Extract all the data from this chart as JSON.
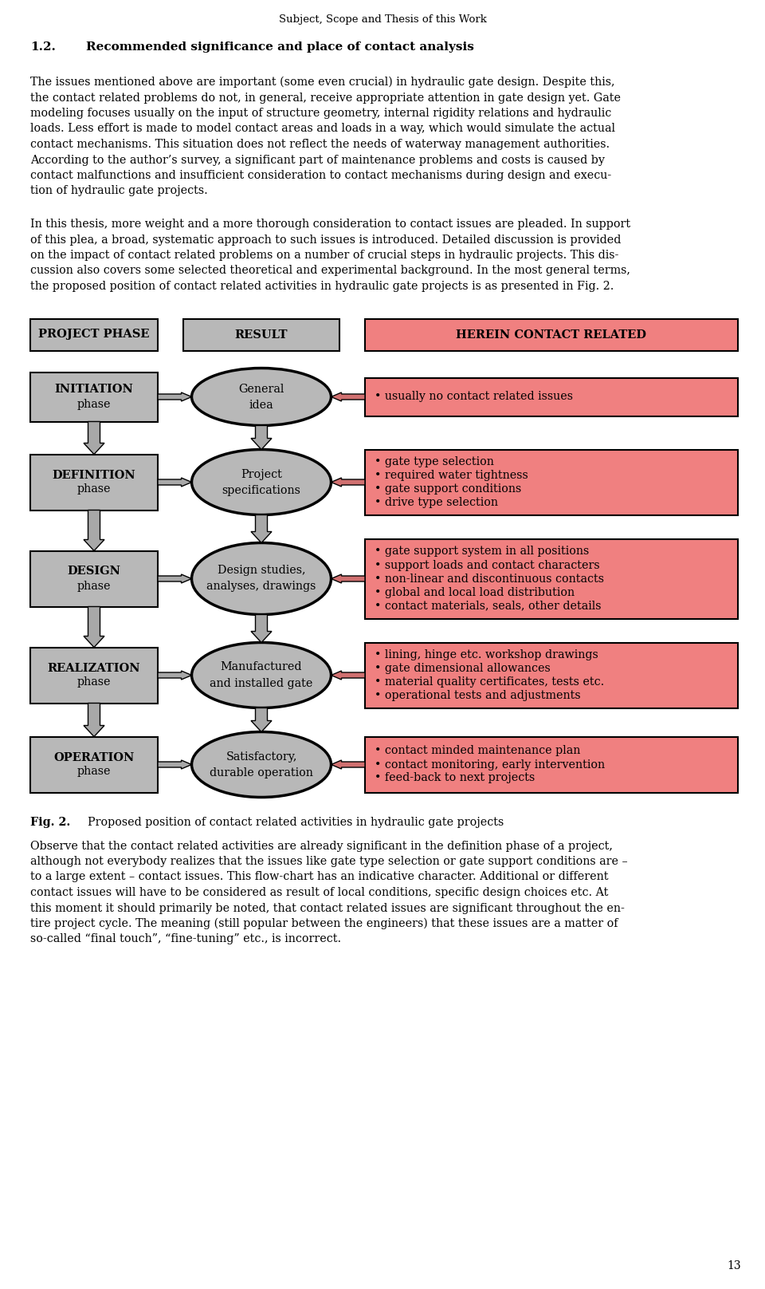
{
  "page_title": "Subject, Scope and Thesis of this Work",
  "section_num": "1.2.",
  "section_title": "Recommended significance and place of contact analysis",
  "para1_lines": [
    "The issues mentioned above are important (some even crucial) in hydraulic gate design. Despite this,",
    "the contact related problems do not, in general, receive appropriate attention in gate design yet. Gate",
    "modeling focuses usually on the input of structure geometry, internal rigidity relations and hydraulic",
    "loads. Less effort is made to model contact areas and loads in a way, which would simulate the actual",
    "contact mechanisms. This situation does not reflect the needs of waterway management authorities.",
    "According to the author’s survey, a significant part of maintenance problems and costs is caused by",
    "contact malfunctions and insufficient consideration to contact mechanisms during design and execu-",
    "tion of hydraulic gate projects."
  ],
  "para2_lines": [
    "In this thesis, more weight and a more thorough consideration to contact issues are pleaded. In support",
    "of this plea, a broad, systematic approach to such issues is introduced. Detailed discussion is provided",
    "on the impact of contact related problems on a number of crucial steps in hydraulic projects. This dis-",
    "cussion also covers some selected theoretical and experimental background. In the most general terms,",
    "the proposed position of contact related activities in hydraulic gate projects is as presented in Fig. 2."
  ],
  "col1_header": "PROJECT PHASE",
  "col2_header": "RESULT",
  "col3_header": "HEREIN CONTACT RELATED",
  "phases": [
    "INITIATION\nphase",
    "DEFINITION\nphase",
    "DESIGN\nphase",
    "REALIZATION\nphase",
    "OPERATION\nphase"
  ],
  "results": [
    "General\nidea",
    "Project\nspecifications",
    "Design studies,\nanalyses, drawings",
    "Manufactured\nand installed gate",
    "Satisfactory,\ndurable operation"
  ],
  "contact_items": [
    "• usually no contact related issues",
    "• gate type selection\n• required water tightness\n• gate support conditions\n• drive type selection",
    "• gate support system in all positions\n• support loads and contact characters\n• non-linear and discontinuous contacts\n• global and local load distribution\n• contact materials, seals, other details",
    "• lining, hinge etc. workshop drawings\n• gate dimensional allowances\n• material quality certificates, tests etc.\n• operational tests and adjustments",
    "• contact minded maintenance plan\n• contact monitoring, early intervention\n• feed-back to next projects"
  ],
  "fig_bold": "Fig. 2.",
  "fig_caption": "Proposed position of contact related activities in hydraulic gate projects",
  "para3_lines": [
    "Observe that the contact related activities are already significant in the definition phase of a project,",
    "although not everybody realizes that the issues like gate type selection or gate support conditions are –",
    "to a large extent – contact issues. This flow-chart has an indicative character. Additional or different",
    "contact issues will have to be considered as result of local conditions, specific design choices etc. At",
    "this moment it should primarily be noted, that contact related issues are significant throughout the en-",
    "tire project cycle. The meaning (still popular between the engineers) that these issues are a matter of",
    "so-called “final touch”, “fine-tuning” etc., is incorrect."
  ],
  "page_number": "13",
  "bg_color": "#ffffff",
  "text_color": "#000000",
  "gray_color": "#b8b8b8",
  "pink_color": "#f08080",
  "arrow_gray": "#a8a8a8",
  "arrow_pink": "#d07070"
}
